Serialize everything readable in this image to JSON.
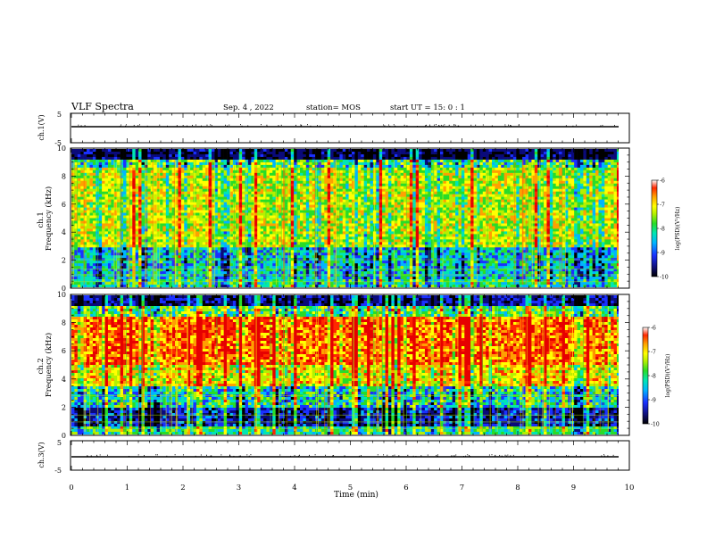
{
  "header": {
    "title": "VLF Spectra",
    "date": "Sep. 4  , 2022",
    "station": "station= MOS",
    "start_ut": "start  UT =   15: 0   : 1"
  },
  "chart_data": [
    {
      "type": "line",
      "name": "ch1-waveform",
      "ylabel": "ch.1(V)",
      "ylim": [
        -5,
        5
      ],
      "yticks": [
        "5",
        "-5"
      ],
      "x": [
        0,
        10
      ],
      "values": [
        0,
        0
      ]
    },
    {
      "type": "heatmap",
      "name": "ch1-spectrogram",
      "ylabel": "ch.1\nFrequency (kHz)",
      "ylim": [
        0,
        10
      ],
      "yticks": [
        "0",
        "2",
        "4",
        "6",
        "8",
        "10"
      ],
      "xlim": [
        0,
        10
      ],
      "data_extent_x": 9.83,
      "colorbar": {
        "label": "log(PSD)(V²/Hz)",
        "range": [
          -10,
          -6
        ],
        "ticks": [
          "-6",
          "-7",
          "-8",
          "-9",
          "-10"
        ]
      }
    },
    {
      "type": "heatmap",
      "name": "ch2-spectrogram",
      "ylabel": "ch.2\nFrequency (kHz)",
      "ylim": [
        0,
        10
      ],
      "yticks": [
        "0",
        "2",
        "4",
        "6",
        "8",
        "10"
      ],
      "xlim": [
        0,
        10
      ],
      "data_extent_x": 9.83,
      "colorbar": {
        "label": "log(PSD)(V²/Hz)",
        "range": [
          -10,
          -6
        ],
        "ticks": [
          "-6",
          "-7",
          "-8",
          "-9",
          "-10"
        ]
      }
    },
    {
      "type": "line",
      "name": "ch3-waveform",
      "ylabel": "ch.3(V)",
      "ylim": [
        -5,
        5
      ],
      "yticks": [
        "5",
        "-5"
      ],
      "x": [
        0,
        10
      ],
      "values": [
        0,
        0
      ]
    }
  ],
  "xaxis": {
    "label": "Time  (min)",
    "range": [
      0,
      10
    ],
    "ticks": [
      "0",
      "1",
      "2",
      "3",
      "4",
      "5",
      "6",
      "7",
      "8",
      "9",
      "10"
    ]
  },
  "colors": {
    "scale": [
      "#000000",
      "#0a0a7a",
      "#1a30ff",
      "#00b4ff",
      "#00e6b4",
      "#28dc28",
      "#b4f000",
      "#ffff00",
      "#ffa000",
      "#ff2800",
      "#e60000"
    ],
    "ink": "#000000"
  }
}
